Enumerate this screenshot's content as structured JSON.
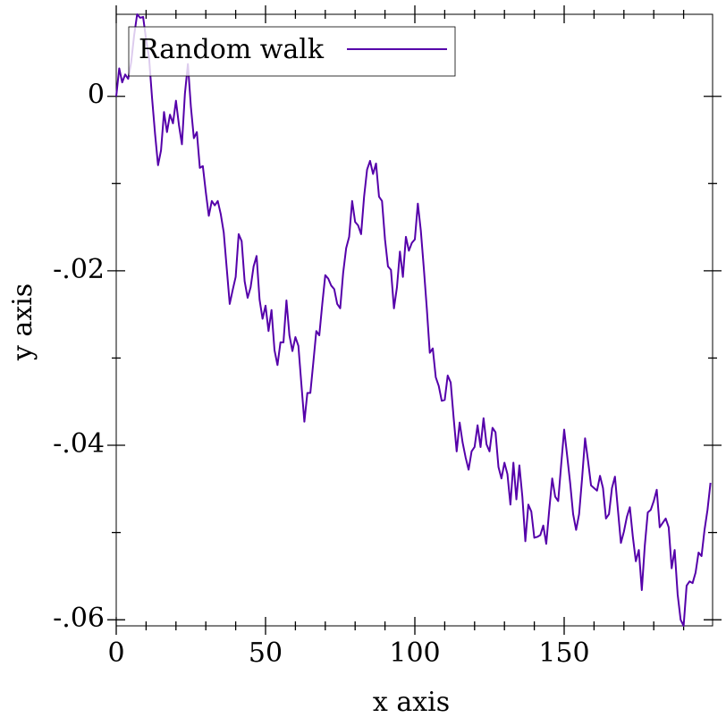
{
  "chart_data": {
    "type": "line",
    "x_label": "x axis",
    "y_label": "y axis",
    "legend": "top-left",
    "x": [
      0,
      1,
      2,
      3,
      4,
      5,
      6,
      7,
      8,
      9,
      10,
      11,
      12,
      13,
      14,
      15,
      16,
      17,
      18,
      19,
      20,
      21,
      22,
      23,
      24,
      25,
      26,
      27,
      28,
      29,
      30,
      31,
      32,
      33,
      34,
      35,
      36,
      37,
      38,
      39,
      40,
      41,
      42,
      43,
      44,
      45,
      46,
      47,
      48,
      49,
      50,
      51,
      52,
      53,
      54,
      55,
      56,
      57,
      58,
      59,
      60,
      61,
      62,
      63,
      64,
      65,
      66,
      67,
      68,
      69,
      70,
      71,
      72,
      73,
      74,
      75,
      76,
      77,
      78,
      79,
      80,
      81,
      82,
      83,
      84,
      85,
      86,
      87,
      88,
      89,
      90,
      91,
      92,
      93,
      94,
      95,
      96,
      97,
      98,
      99,
      100,
      101,
      102,
      103,
      104,
      105,
      106,
      107,
      108,
      109,
      110,
      111,
      112,
      113,
      114,
      115,
      116,
      117,
      118,
      119,
      120,
      121,
      122,
      123,
      124,
      125,
      126,
      127,
      128,
      129,
      130,
      131,
      132,
      133,
      134,
      135,
      136,
      137,
      138,
      139,
      140,
      141,
      142,
      143,
      144,
      145,
      146,
      147,
      148,
      149,
      150,
      151,
      152,
      153,
      154,
      155,
      156,
      157,
      158,
      159,
      160,
      161,
      162,
      163,
      164,
      165,
      166,
      167,
      168,
      169,
      170,
      171,
      172,
      173,
      174,
      175,
      176,
      177,
      178,
      179,
      180,
      181,
      182,
      183,
      184,
      185,
      186,
      187,
      188,
      189,
      190,
      191,
      192,
      193,
      194,
      195,
      196,
      197,
      198,
      199
    ],
    "series": [
      {
        "name": "Random walk",
        "color": "#5500aa",
        "values": [
          0,
          0.0032,
          0.0016,
          0.0025,
          0.002,
          0.0039,
          0.007,
          0.0094,
          0.009,
          0.0091,
          0.0065,
          0.0044,
          -0.0002,
          -0.0043,
          -0.0079,
          -0.0062,
          -0.0018,
          -0.0041,
          -0.0021,
          -0.0031,
          -0.0005,
          -0.0033,
          -0.0055,
          0.0003,
          0.0037,
          -0.0012,
          -0.0048,
          -0.0041,
          -0.0082,
          -0.008,
          -0.011,
          -0.0137,
          -0.012,
          -0.0125,
          -0.012,
          -0.0135,
          -0.0156,
          -0.0197,
          -0.0238,
          -0.0222,
          -0.0207,
          -0.0158,
          -0.0166,
          -0.0212,
          -0.0231,
          -0.0219,
          -0.0195,
          -0.0183,
          -0.0233,
          -0.0255,
          -0.024,
          -0.0269,
          -0.0245,
          -0.0291,
          -0.0308,
          -0.0282,
          -0.0282,
          -0.0234,
          -0.0274,
          -0.0292,
          -0.0276,
          -0.0286,
          -0.033,
          -0.0373,
          -0.034,
          -0.034,
          -0.0305,
          -0.0269,
          -0.0274,
          -0.0238,
          -0.0205,
          -0.0209,
          -0.0217,
          -0.0221,
          -0.0238,
          -0.0243,
          -0.0202,
          -0.0174,
          -0.0161,
          -0.012,
          -0.0144,
          -0.0148,
          -0.0158,
          -0.0115,
          -0.0084,
          -0.0074,
          -0.0089,
          -0.0077,
          -0.0115,
          -0.012,
          -0.0164,
          -0.0195,
          -0.0199,
          -0.0243,
          -0.0219,
          -0.0178,
          -0.0207,
          -0.0161,
          -0.0177,
          -0.0168,
          -0.0164,
          -0.0123,
          -0.0154,
          -0.0197,
          -0.0243,
          -0.0294,
          -0.0289,
          -0.0322,
          -0.0332,
          -0.0349,
          -0.0348,
          -0.032,
          -0.0328,
          -0.0369,
          -0.0407,
          -0.0374,
          -0.0397,
          -0.0414,
          -0.0428,
          -0.0407,
          -0.0402,
          -0.0377,
          -0.0402,
          -0.0369,
          -0.0399,
          -0.0407,
          -0.038,
          -0.0385,
          -0.0425,
          -0.0438,
          -0.042,
          -0.0433,
          -0.0468,
          -0.042,
          -0.0462,
          -0.0423,
          -0.0459,
          -0.051,
          -0.0468,
          -0.0476,
          -0.0506,
          -0.0505,
          -0.0503,
          -0.0492,
          -0.0513,
          -0.0474,
          -0.0438,
          -0.0459,
          -0.0464,
          -0.0422,
          -0.0382,
          -0.0412,
          -0.0443,
          -0.0479,
          -0.0497,
          -0.0479,
          -0.0438,
          -0.0392,
          -0.0418,
          -0.0446,
          -0.0449,
          -0.0452,
          -0.0435,
          -0.0449,
          -0.0484,
          -0.0479,
          -0.0449,
          -0.0436,
          -0.0474,
          -0.0512,
          -0.0499,
          -0.0482,
          -0.0471,
          -0.0505,
          -0.0533,
          -0.052,
          -0.0566,
          -0.0515,
          -0.0477,
          -0.0474,
          -0.0464,
          -0.0451,
          -0.0494,
          -0.0489,
          -0.0484,
          -0.0494,
          -0.0541,
          -0.052,
          -0.0571,
          -0.06,
          -0.0607,
          -0.0561,
          -0.0556,
          -0.0558,
          -0.0546,
          -0.0523,
          -0.0527,
          -0.0497,
          -0.0474,
          -0.0443
        ]
      }
    ],
    "xlim": [
      0,
      199.7
    ],
    "ylim": [
      -0.0607,
      0.0094
    ],
    "xticks": [
      0,
      50,
      100,
      150
    ],
    "yticks": [
      {
        "value": 0,
        "label": "0"
      },
      {
        "value": -0.02,
        "label": "-.02"
      },
      {
        "value": -0.04,
        "label": "-.04"
      },
      {
        "value": -0.06,
        "label": "-.06"
      }
    ],
    "xticks_minor": [
      10,
      20,
      30,
      40,
      60,
      70,
      80,
      90,
      110,
      120,
      130,
      140,
      160,
      170,
      180,
      190
    ],
    "yticks_minor": [
      -0.01,
      -0.03,
      -0.05
    ]
  }
}
